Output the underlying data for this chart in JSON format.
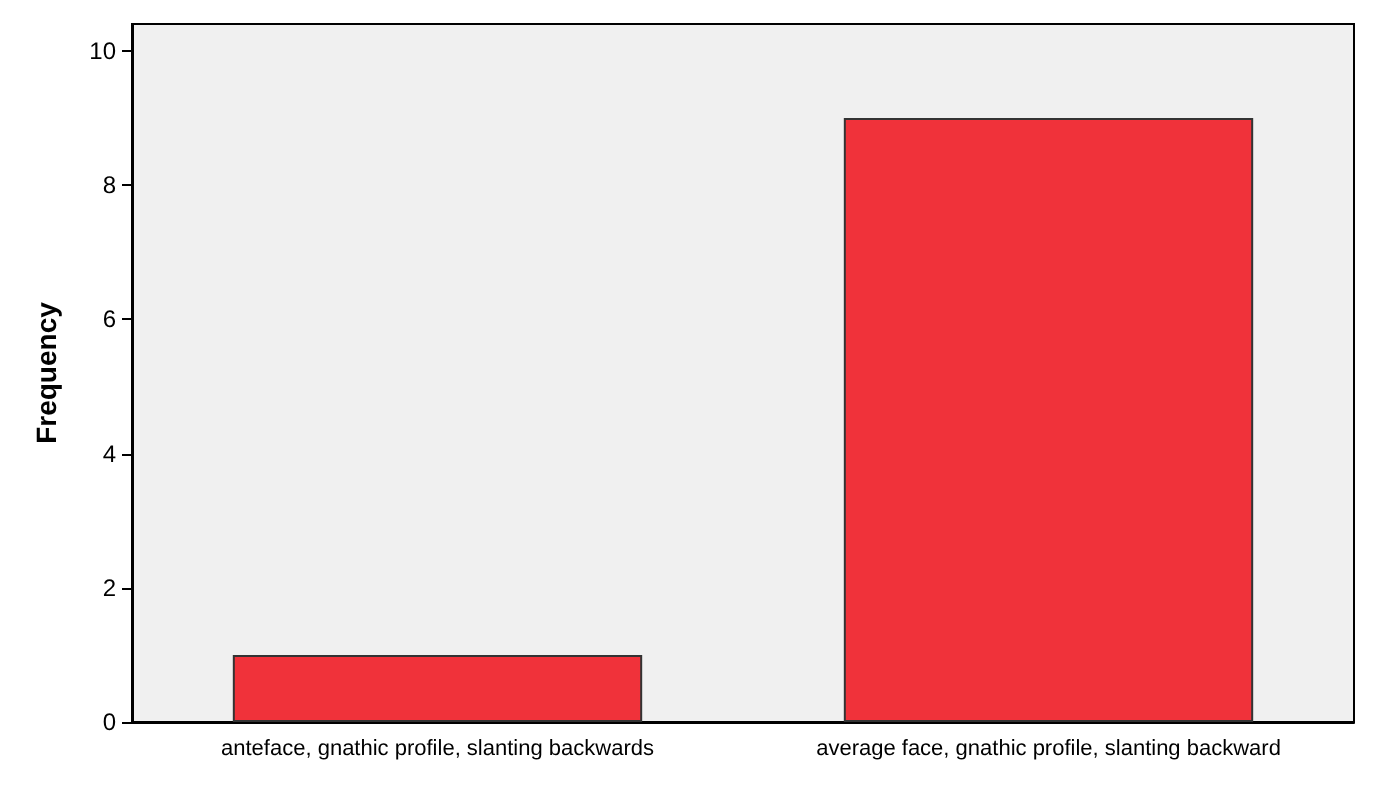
{
  "chart_data": {
    "type": "bar",
    "ylabel": "Frequency",
    "categories": [
      "anteface, gnathic profile, slanting backwards",
      "average face, gnathic profile, slanting backward"
    ],
    "values": [
      1,
      9
    ],
    "color": "#f0323a",
    "ylim": [
      0,
      10.4
    ],
    "yticks": [
      0,
      2,
      4,
      6,
      8,
      10
    ],
    "grid": false
  }
}
